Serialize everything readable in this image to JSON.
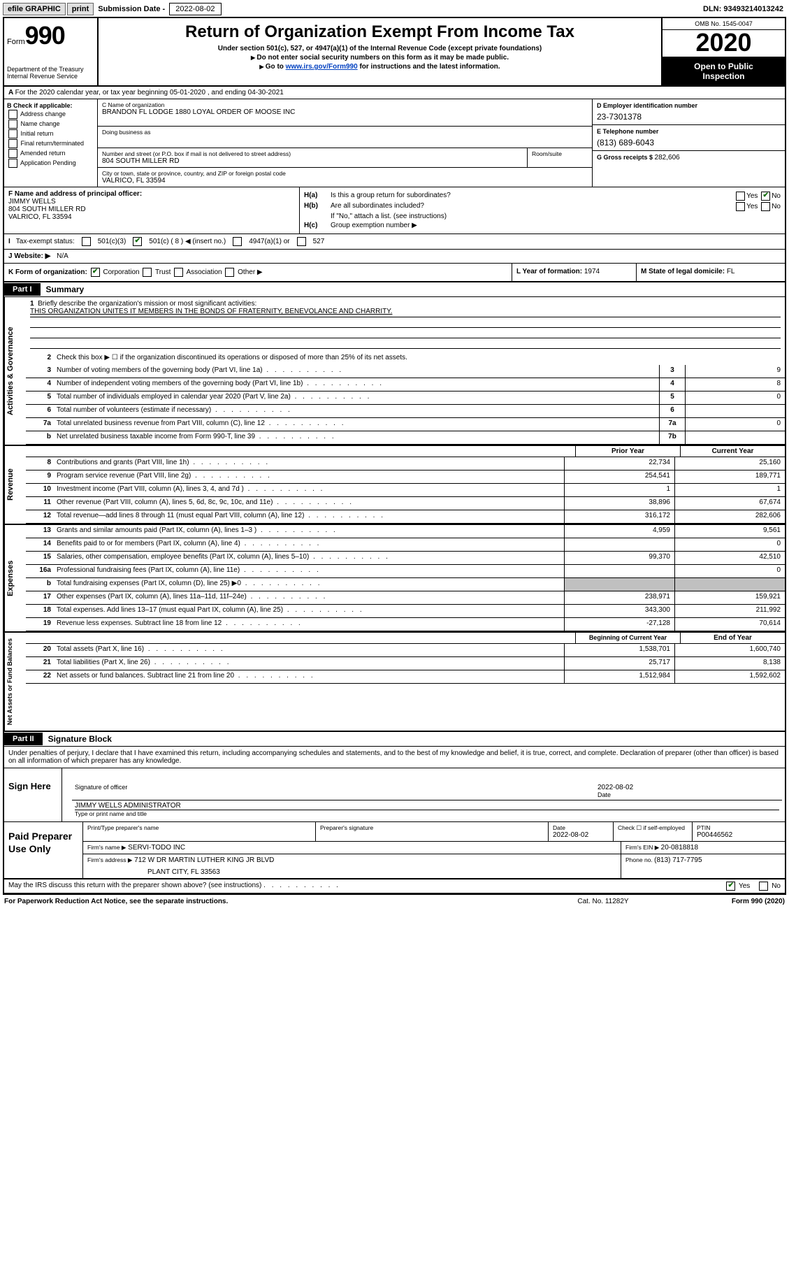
{
  "topbar": {
    "efile_label": "efile GRAPHIC",
    "print_btn": "print",
    "submission_label": "Submission Date - ",
    "submission_date": "2022-08-02",
    "dln_label": "DLN: ",
    "dln": "93493214013242"
  },
  "header": {
    "form_word": "Form",
    "form_num": "990",
    "dept": "Department of the Treasury",
    "irs": "Internal Revenue Service",
    "title": "Return of Organization Exempt From Income Tax",
    "sub1": "Under section 501(c), 527, or 4947(a)(1) of the Internal Revenue Code (except private foundations)",
    "sub2": "Do not enter social security numbers on this form as it may be made public.",
    "sub3_pre": "Go to ",
    "sub3_link": "www.irs.gov/Form990",
    "sub3_post": " for instructions and the latest information.",
    "omb": "OMB No. 1545-0047",
    "year": "2020",
    "inspect1": "Open to Public",
    "inspect2": "Inspection"
  },
  "lineA": "For the 2020 calendar year, or tax year beginning 05-01-2020     , and ending 04-30-2021",
  "blockB": {
    "label": "B Check if applicable:",
    "opts": [
      "Address change",
      "Name change",
      "Initial return",
      "Final return/terminated",
      "Amended return",
      "Application Pending"
    ]
  },
  "blockC": {
    "name_label": "C Name of organization",
    "name": "BRANDON FL LODGE 1880 LOYAL ORDER OF MOOSE INC",
    "dba_label": "Doing business as",
    "street_label": "Number and street (or P.O. box if mail is not delivered to street address)",
    "street": "804 SOUTH MILLER RD",
    "room_label": "Room/suite",
    "city_label": "City or town, state or province, country, and ZIP or foreign postal code",
    "city": "VALRICO, FL  33594"
  },
  "blockD": {
    "ein_label": "D Employer identification number",
    "ein": "23-7301378",
    "phone_label": "E Telephone number",
    "phone": "(813) 689-6043",
    "gross_label": "G Gross receipts $ ",
    "gross": "282,606"
  },
  "blockF": {
    "label": "F  Name and address of principal officer:",
    "name": "JIMMY WELLS",
    "street": "804 SOUTH MILLER RD",
    "city": "VALRICO, FL  33594"
  },
  "blockH": {
    "a_label": "H(a)",
    "a_text": "Is this a group return for subordinates?",
    "b_label": "H(b)",
    "b_text": "Are all subordinates included?",
    "b_note": "If \"No,\" attach a list. (see instructions)",
    "c_label": "H(c)",
    "c_text": "Group exemption number ▶",
    "yes": "Yes",
    "no": "No"
  },
  "rowI": {
    "label": "Tax-exempt status:",
    "o1": "501(c)(3)",
    "o2_pre": "501(c) ( ",
    "o2_num": "8",
    "o2_post": " ) ◀ (insert no.)",
    "o3": "4947(a)(1) or",
    "o4": "527"
  },
  "rowJ": {
    "label": "J   Website: ▶",
    "val": "N/A"
  },
  "rowK": {
    "label": "K Form of organization:",
    "opts": [
      "Corporation",
      "Trust",
      "Association",
      "Other ▶"
    ]
  },
  "rowL": {
    "label": "L Year of formation: ",
    "val": "1974"
  },
  "rowM": {
    "label": "M State of legal domicile: ",
    "val": "FL"
  },
  "partI": {
    "tab": "Part I",
    "title": "Summary"
  },
  "side": {
    "gov": "Activities & Governance",
    "rev": "Revenue",
    "exp": "Expenses",
    "net": "Net Assets or Fund Balances"
  },
  "q1": {
    "num": "1",
    "text": "Briefly describe the organization's mission or most significant activities:",
    "mission": "THIS ORGANIZATION UNITES IT MEMBERS IN THE BONDS OF FRATERNITY, BENEVOLANCE AND CHARRITY."
  },
  "gov_rows": [
    {
      "num": "2",
      "text": "Check this box ▶ ☐ if the organization discontinued its operations or disposed of more than 25% of its net assets."
    },
    {
      "num": "3",
      "text": "Number of voting members of the governing body (Part VI, line 1a)",
      "box": "3",
      "val": "9"
    },
    {
      "num": "4",
      "text": "Number of independent voting members of the governing body (Part VI, line 1b)",
      "box": "4",
      "val": "8"
    },
    {
      "num": "5",
      "text": "Total number of individuals employed in calendar year 2020 (Part V, line 2a)",
      "box": "5",
      "val": "0"
    },
    {
      "num": "6",
      "text": "Total number of volunteers (estimate if necessary)",
      "box": "6",
      "val": ""
    },
    {
      "num": "7a",
      "text": "Total unrelated business revenue from Part VIII, column (C), line 12",
      "box": "7a",
      "val": "0"
    },
    {
      "num": "b",
      "text": "Net unrelated business taxable income from Form 990-T, line 39",
      "box": "7b",
      "val": ""
    }
  ],
  "col_hdr": {
    "prior": "Prior Year",
    "curr": "Current Year"
  },
  "rev_rows": [
    {
      "num": "8",
      "text": "Contributions and grants (Part VIII, line 1h)",
      "p": "22,734",
      "c": "25,160"
    },
    {
      "num": "9",
      "text": "Program service revenue (Part VIII, line 2g)",
      "p": "254,541",
      "c": "189,771"
    },
    {
      "num": "10",
      "text": "Investment income (Part VIII, column (A), lines 3, 4, and 7d )",
      "p": "1",
      "c": "1"
    },
    {
      "num": "11",
      "text": "Other revenue (Part VIII, column (A), lines 5, 6d, 8c, 9c, 10c, and 11e)",
      "p": "38,896",
      "c": "67,674"
    },
    {
      "num": "12",
      "text": "Total revenue—add lines 8 through 11 (must equal Part VIII, column (A), line 12)",
      "p": "316,172",
      "c": "282,606"
    }
  ],
  "exp_rows": [
    {
      "num": "13",
      "text": "Grants and similar amounts paid (Part IX, column (A), lines 1–3 )",
      "p": "4,959",
      "c": "9,561"
    },
    {
      "num": "14",
      "text": "Benefits paid to or for members (Part IX, column (A), line 4)",
      "p": "",
      "c": "0"
    },
    {
      "num": "15",
      "text": "Salaries, other compensation, employee benefits (Part IX, column (A), lines 5–10)",
      "p": "99,370",
      "c": "42,510"
    },
    {
      "num": "16a",
      "text": "Professional fundraising fees (Part IX, column (A), line 11e)",
      "p": "",
      "c": "0"
    },
    {
      "num": "b",
      "text": "Total fundraising expenses (Part IX, column (D), line 25) ▶0",
      "shaded": true
    },
    {
      "num": "17",
      "text": "Other expenses (Part IX, column (A), lines 11a–11d, 11f–24e)",
      "p": "238,971",
      "c": "159,921"
    },
    {
      "num": "18",
      "text": "Total expenses. Add lines 13–17 (must equal Part IX, column (A), line 25)",
      "p": "343,300",
      "c": "211,992"
    },
    {
      "num": "19",
      "text": "Revenue less expenses. Subtract line 18 from line 12",
      "p": "-27,128",
      "c": "70,614"
    }
  ],
  "net_hdr": {
    "prior": "Beginning of Current Year",
    "curr": "End of Year"
  },
  "net_rows": [
    {
      "num": "20",
      "text": "Total assets (Part X, line 16)",
      "p": "1,538,701",
      "c": "1,600,740"
    },
    {
      "num": "21",
      "text": "Total liabilities (Part X, line 26)",
      "p": "25,717",
      "c": "8,138"
    },
    {
      "num": "22",
      "text": "Net assets or fund balances. Subtract line 21 from line 20",
      "p": "1,512,984",
      "c": "1,592,602"
    }
  ],
  "partII": {
    "tab": "Part II",
    "title": "Signature Block"
  },
  "declaration": "Under penalties of perjury, I declare that I have examined this return, including accompanying schedules and statements, and to the best of my knowledge and belief, it is true, correct, and complete. Declaration of preparer (other than officer) is based on all information of which preparer has any knowledge.",
  "sign": {
    "here": "Sign Here",
    "sig_label": "Signature of officer",
    "date_label": "Date",
    "date_val": "2022-08-02",
    "name": "JIMMY WELLS  ADMINISTRATOR",
    "name_label": "Type or print name and title"
  },
  "prep": {
    "here": "Paid Preparer Use Only",
    "h_name": "Print/Type preparer's name",
    "h_sig": "Preparer's signature",
    "h_date": "Date",
    "date_val": "2022-08-02",
    "self": "Check ☐ if self-employed",
    "ptin_l": "PTIN",
    "ptin": "P00446562",
    "firm_l": "Firm's name     ▶",
    "firm": "SERVI-TODO INC",
    "ein_l": "Firm's EIN ▶ ",
    "ein": "20-0818818",
    "addr_l": "Firm's address ▶",
    "addr1": "712 W DR MARTIN LUTHER KING JR BLVD",
    "addr2": "PLANT CITY, FL  33563",
    "ph_l": "Phone no. ",
    "ph": "(813) 717-7795"
  },
  "may_irs": {
    "text": "May the IRS discuss this return with the preparer shown above? (see instructions)",
    "yes": "Yes",
    "no": "No"
  },
  "footer": {
    "left": "For Paperwork Reduction Act Notice, see the separate instructions.",
    "mid": "Cat. No. 11282Y",
    "right_pre": "Form ",
    "right_b": "990",
    "right_post": " (2020)"
  }
}
